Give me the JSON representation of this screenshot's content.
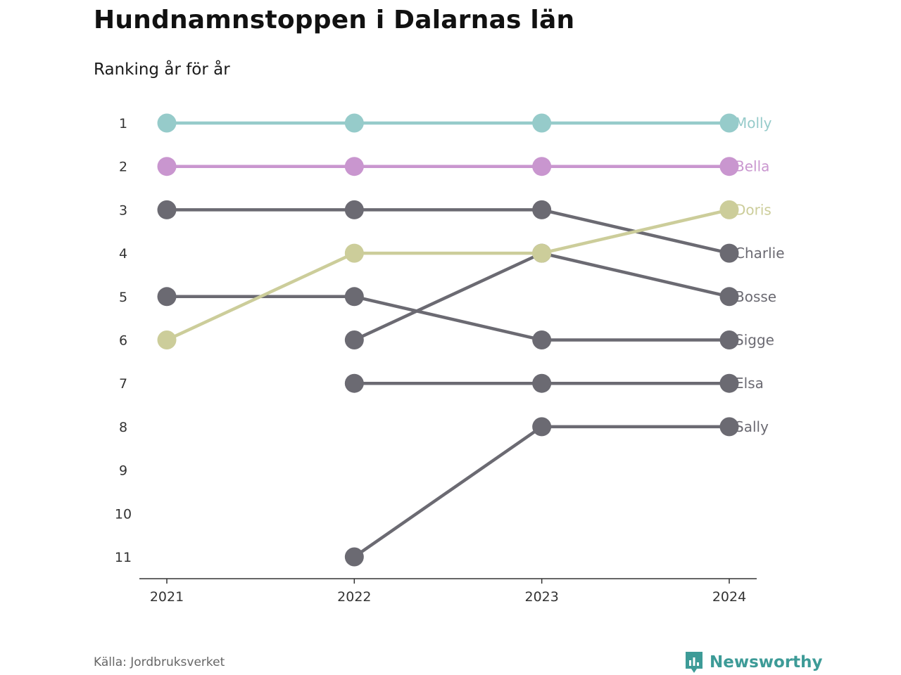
{
  "title": "Hundnamnstoppen i Dalarnas län",
  "subtitle": "Ranking år för år",
  "source": "Källa: Jordbruksverket",
  "brand": {
    "name": "Newsworthy",
    "icon": "newsworthy-logo-icon",
    "color": "#3d9b97"
  },
  "chart_data": {
    "type": "line",
    "x": [
      "2021",
      "2022",
      "2023",
      "2024"
    ],
    "y_ticks": [
      1,
      2,
      3,
      4,
      5,
      6,
      7,
      8,
      9,
      10,
      11
    ],
    "y_reversed": true,
    "ylim": [
      1,
      11
    ],
    "grid": false,
    "series": [
      {
        "name": "Sally",
        "color": "#6b6a72",
        "values": [
          null,
          11,
          8,
          8
        ]
      },
      {
        "name": "Elsa",
        "color": "#6b6a72",
        "values": [
          null,
          7,
          7,
          7
        ]
      },
      {
        "name": "Sigge",
        "color": "#6b6a72",
        "values": [
          5,
          5,
          6,
          6
        ]
      },
      {
        "name": "Bosse",
        "color": "#6b6a72",
        "values": [
          null,
          6,
          4,
          5
        ]
      },
      {
        "name": "Charlie",
        "color": "#6b6a72",
        "values": [
          3,
          3,
          3,
          4
        ]
      },
      {
        "name": "Doris",
        "color": "#cccd9a",
        "values": [
          6,
          4,
          4,
          3
        ]
      },
      {
        "name": "Bella",
        "color": "#c996cf",
        "values": [
          2,
          2,
          2,
          2
        ]
      },
      {
        "name": "Molly",
        "color": "#96cbca",
        "values": [
          1,
          1,
          1,
          1
        ]
      }
    ]
  }
}
